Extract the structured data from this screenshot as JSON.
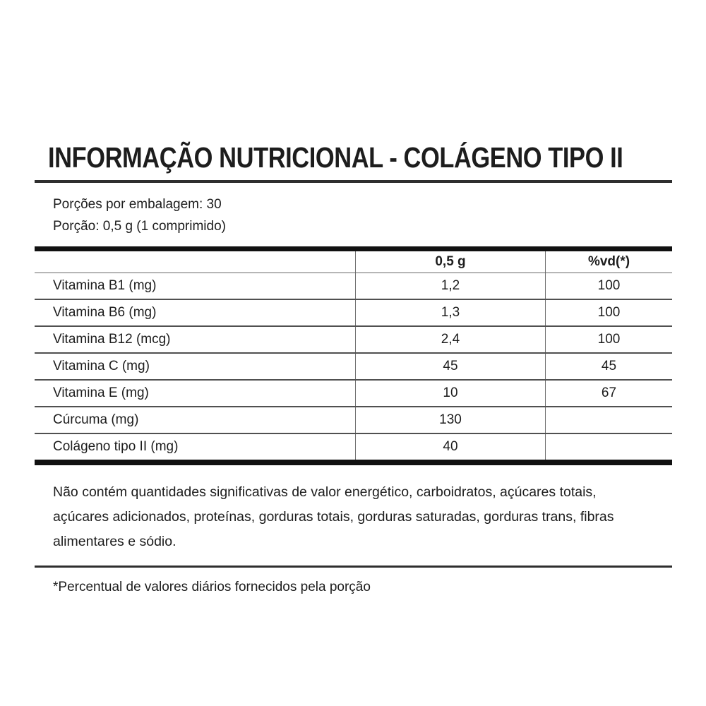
{
  "title": "INFORMAÇÃO NUTRICIONAL - COLÁGENO TIPO II",
  "serving": {
    "per_package": "Porções por embalagem: 30",
    "portion": "Porção: 0,5 g (1 comprimido)"
  },
  "table": {
    "columns": [
      "",
      "0,5 g",
      "%vd(*)"
    ],
    "rows": [
      {
        "name": "Vitamina B1 (mg)",
        "amount": "1,2",
        "dv": "100"
      },
      {
        "name": "Vitamina B6 (mg)",
        "amount": "1,3",
        "dv": "100"
      },
      {
        "name": "Vitamina B12 (mcg)",
        "amount": "2,4",
        "dv": "100"
      },
      {
        "name": "Vitamina C (mg)",
        "amount": "45",
        "dv": "45"
      },
      {
        "name": "Vitamina E (mg)",
        "amount": "10",
        "dv": "67"
      },
      {
        "name": "Cúrcuma (mg)",
        "amount": "130",
        "dv": ""
      },
      {
        "name": "Colágeno tipo II (mg)",
        "amount": "40",
        "dv": ""
      }
    ]
  },
  "notes": {
    "no_significant": "Não contém quantidades significativas de valor energético, carboidratos, açúcares totais, açúcares adicionados, proteínas, gorduras totais, gorduras saturadas, gorduras trans, fibras alimentares e sódio.",
    "footnote": "*Percentual de valores diários fornecidos pela porção"
  },
  "colors": {
    "background": "#ffffff",
    "text": "#1d1d1d",
    "heavy_rule": "#111111",
    "medium_rule": "#2e2e2e",
    "row_rule": "#505050",
    "column_rule": "#6f6f6f"
  }
}
